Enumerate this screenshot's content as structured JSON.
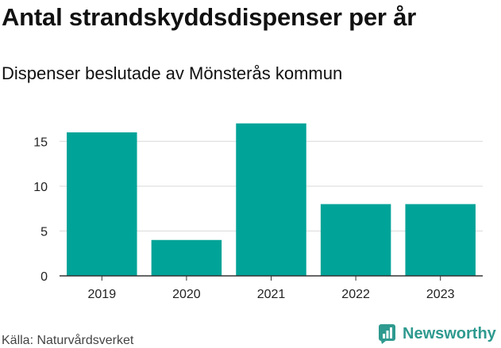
{
  "title": "Antal strandskyddsdispenser per år",
  "subtitle": "Dispenser beslutade av Mönsterås kommun",
  "source": "Källa: Naturvårdsverket",
  "brand": "Newsworthy",
  "colors": {
    "bar": "#00a398",
    "grid": "#d9d9d9",
    "axis": "#333333",
    "brand": "#2f9a8f"
  },
  "chart_data": {
    "type": "bar",
    "title": "Antal strandskyddsdispenser per år",
    "subtitle": "Dispenser beslutade av Mönsterås kommun",
    "xlabel": "",
    "ylabel": "",
    "categories": [
      "2019",
      "2020",
      "2021",
      "2022",
      "2023"
    ],
    "values": [
      16,
      4,
      17,
      8,
      8
    ],
    "ylim": [
      0,
      17.5
    ],
    "yticks": [
      0,
      5,
      10,
      15
    ],
    "grid": true
  }
}
